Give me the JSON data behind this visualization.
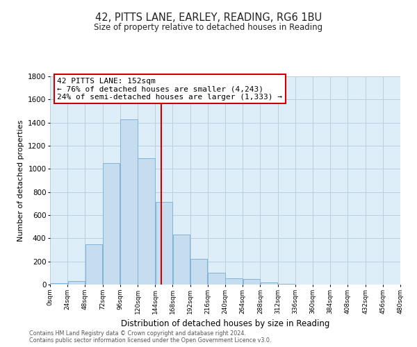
{
  "title_line1": "42, PITTS LANE, EARLEY, READING, RG6 1BU",
  "title_line2": "Size of property relative to detached houses in Reading",
  "xlabel": "Distribution of detached houses by size in Reading",
  "ylabel": "Number of detached properties",
  "bar_color": "#c6ddf0",
  "bar_edge_color": "#7fb3d8",
  "plot_bg_color": "#ddeef8",
  "background_color": "#ffffff",
  "grid_color": "#b8cfe0",
  "bin_edges": [
    0,
    24,
    48,
    72,
    96,
    120,
    144,
    168,
    192,
    216,
    240,
    264,
    288,
    312,
    336,
    360,
    384,
    408,
    432,
    456,
    480
  ],
  "bar_heights": [
    15,
    30,
    350,
    1050,
    1430,
    1090,
    715,
    430,
    220,
    105,
    55,
    50,
    20,
    5,
    2,
    1,
    1,
    0,
    0,
    0
  ],
  "property_size": 152,
  "vline_color": "#cc0000",
  "annotation_text_line1": "42 PITTS LANE: 152sqm",
  "annotation_text_line2": "← 76% of detached houses are smaller (4,243)",
  "annotation_text_line3": "24% of semi-detached houses are larger (1,333) →",
  "annotation_box_color": "#ffffff",
  "annotation_box_edge": "#cc0000",
  "xlim": [
    0,
    480
  ],
  "ylim": [
    0,
    1800
  ],
  "yticks": [
    0,
    200,
    400,
    600,
    800,
    1000,
    1200,
    1400,
    1600,
    1800
  ],
  "xtick_labels": [
    "0sqm",
    "24sqm",
    "48sqm",
    "72sqm",
    "96sqm",
    "120sqm",
    "144sqm",
    "168sqm",
    "192sqm",
    "216sqm",
    "240sqm",
    "264sqm",
    "288sqm",
    "312sqm",
    "336sqm",
    "360sqm",
    "384sqm",
    "408sqm",
    "432sqm",
    "456sqm",
    "480sqm"
  ],
  "footer_line1": "Contains HM Land Registry data © Crown copyright and database right 2024.",
  "footer_line2": "Contains public sector information licensed under the Open Government Licence v3.0."
}
